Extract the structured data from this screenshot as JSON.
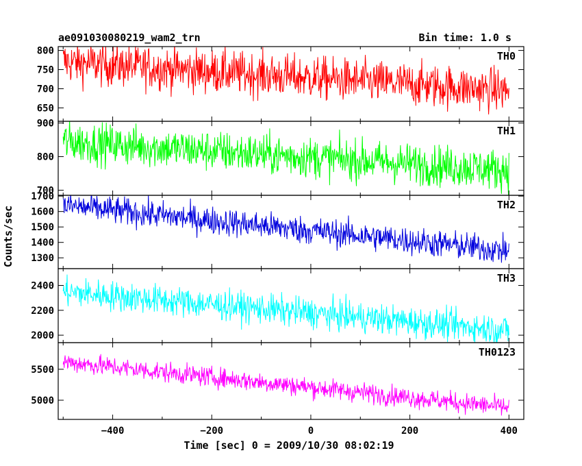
{
  "chart_data": {
    "type": "line",
    "title_left": "ae091030080219_wam2_trn",
    "title_right": "Bin time: 1.0 s",
    "xlabel": "Time [sec] 0 = 2009/10/30 08:02:19",
    "ylabel": "Counts/sec",
    "xlim": [
      -510,
      430
    ],
    "x_ticks": [
      -400,
      -200,
      0,
      200,
      400
    ],
    "bin_time_s": 1.0,
    "grid": false,
    "panels": [
      {
        "name": "TH0",
        "color": "#ff0000",
        "ylim": [
          615,
          810
        ],
        "y_ticks": [
          650,
          700,
          750,
          800
        ],
        "start": 770,
        "end": 695,
        "noise": 28
      },
      {
        "name": "TH1",
        "color": "#00ff00",
        "ylim": [
          685,
          905
        ],
        "y_ticks": [
          700,
          800,
          900
        ],
        "start": 845,
        "end": 760,
        "noise": 30
      },
      {
        "name": "TH2",
        "color": "#0000dd",
        "ylim": [
          1230,
          1705
        ],
        "y_ticks": [
          1300,
          1400,
          1500,
          1600,
          1700
        ],
        "start": 1640,
        "end": 1345,
        "noise": 45
      },
      {
        "name": "TH3",
        "color": "#00ffff",
        "ylim": [
          1940,
          2535
        ],
        "y_ticks": [
          2000,
          2200,
          2400
        ],
        "start": 2350,
        "end": 2040,
        "noise": 60
      },
      {
        "name": "TH0123",
        "color": "#ff00ff",
        "ylim": [
          4690,
          5930
        ],
        "y_ticks": [
          5000,
          5500
        ],
        "start": 5620,
        "end": 4880,
        "noise": 80
      }
    ]
  }
}
